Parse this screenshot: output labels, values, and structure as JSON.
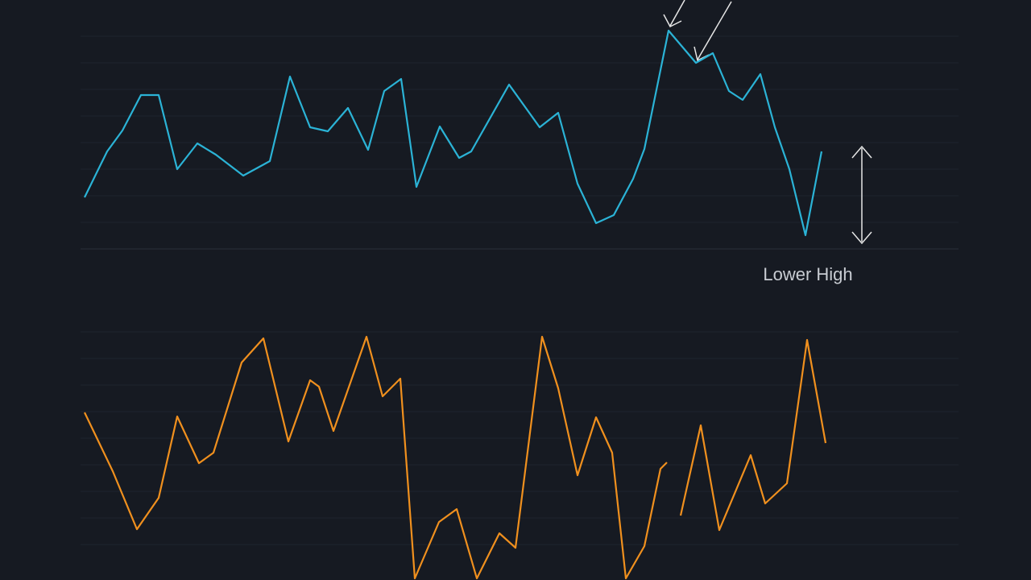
{
  "chart_data": [
    {
      "type": "line",
      "annotation": "Lower High",
      "x": [
        105,
        133,
        152,
        175,
        197,
        220,
        245,
        268,
        302,
        335,
        360,
        385,
        407,
        432,
        457,
        477,
        498,
        517,
        546,
        570,
        585,
        632,
        670,
        693,
        717,
        740,
        762,
        786,
        800,
        830,
        864,
        885,
        905,
        922,
        944,
        962,
        980,
        1000,
        1020
      ],
      "series": [
        {
          "color": "#2bb3d6",
          "values": [
            75,
            132,
            158,
            202,
            202,
            110,
            142,
            128,
            102,
            120,
            225,
            162,
            157,
            186,
            134,
            207,
            222,
            88,
            163,
            124,
            132,
            215,
            162,
            180,
            92,
            43,
            53,
            98,
            135,
            282,
            242,
            254,
            207,
            196,
            228,
            162,
            110,
            28,
            132
          ]
        }
      ],
      "xlim": [
        100,
        1030
      ],
      "ylim": [
        0,
        300
      ]
    },
    {
      "type": "line",
      "x": [
        105,
        140,
        170,
        197,
        220,
        247,
        265,
        300,
        327,
        358,
        385,
        396,
        414,
        455,
        475,
        497,
        515,
        545,
        567,
        592,
        620,
        640,
        673,
        693,
        717,
        740,
        760,
        777,
        800,
        820,
        828,
        836,
        845,
        870,
        893,
        932,
        950,
        977,
        1002,
        1025
      ],
      "series": [
        {
          "color": "#f0901e",
          "values": [
            208,
            135,
            63,
            102,
            203,
            145,
            158,
            270,
            300,
            172,
            248,
            240,
            185,
            302,
            228,
            250,
            2,
            72,
            88,
            2,
            58,
            40,
            302,
            238,
            130,
            202,
            158,
            2,
            42,
            138,
            146,
            null,
            80,
            192,
            62,
            155,
            95,
            120,
            298,
            170
          ]
        }
      ],
      "xlim": [
        100,
        1030
      ],
      "ylim": [
        0,
        320
      ]
    }
  ]
}
